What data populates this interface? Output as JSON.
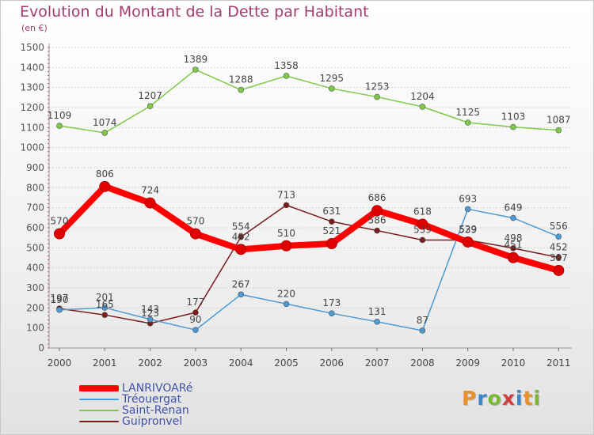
{
  "header": {
    "title": "Evolution du Montant de la Dette par Habitant",
    "unit": "(en €)"
  },
  "brand": {
    "letters": [
      "P",
      "r",
      "o",
      "x",
      "i",
      "t",
      "i"
    ],
    "colors": [
      "#e8912a",
      "#3a86c6",
      "#7ab833",
      "#d83d3d",
      "#3a86c6",
      "#e8912a",
      "#7ab833"
    ]
  },
  "chart_data": {
    "type": "line",
    "title": "Evolution du Montant de la Dette par Habitant",
    "ylabel": "(en €)",
    "xlabel": "",
    "x": [
      "2000",
      "2001",
      "2002",
      "2003",
      "2004",
      "2005",
      "2006",
      "2007",
      "2008",
      "2009",
      "2010",
      "2011"
    ],
    "ylim": [
      0,
      1500
    ],
    "yticks": [
      0,
      100,
      200,
      300,
      400,
      500,
      600,
      700,
      800,
      900,
      1000,
      1100,
      1200,
      1300,
      1400,
      1500
    ],
    "grid": "horizontal",
    "legend": "bottom-left",
    "series": [
      {
        "name": "LANRIVOARé",
        "color": "#ff0000",
        "emphasis": true,
        "values": [
          570,
          806,
          724,
          570,
          492,
          510,
          521,
          686,
          618,
          529,
          451,
          387
        ]
      },
      {
        "name": "Tréouergat",
        "color": "#4b9ad3",
        "emphasis": false,
        "values": [
          190,
          201,
          143,
          90,
          267,
          220,
          173,
          131,
          87,
          693,
          649,
          556
        ]
      },
      {
        "name": "Saint-Renan",
        "color": "#7fc947",
        "emphasis": false,
        "values": [
          1109,
          1074,
          1207,
          1389,
          1288,
          1358,
          1295,
          1253,
          1204,
          1125,
          1103,
          1087
        ]
      },
      {
        "name": "Guipronvel",
        "color": "#7a1c1c",
        "emphasis": false,
        "values": [
          197,
          165,
          123,
          177,
          554,
          713,
          631,
          586,
          539,
          539,
          498,
          452
        ]
      }
    ]
  }
}
